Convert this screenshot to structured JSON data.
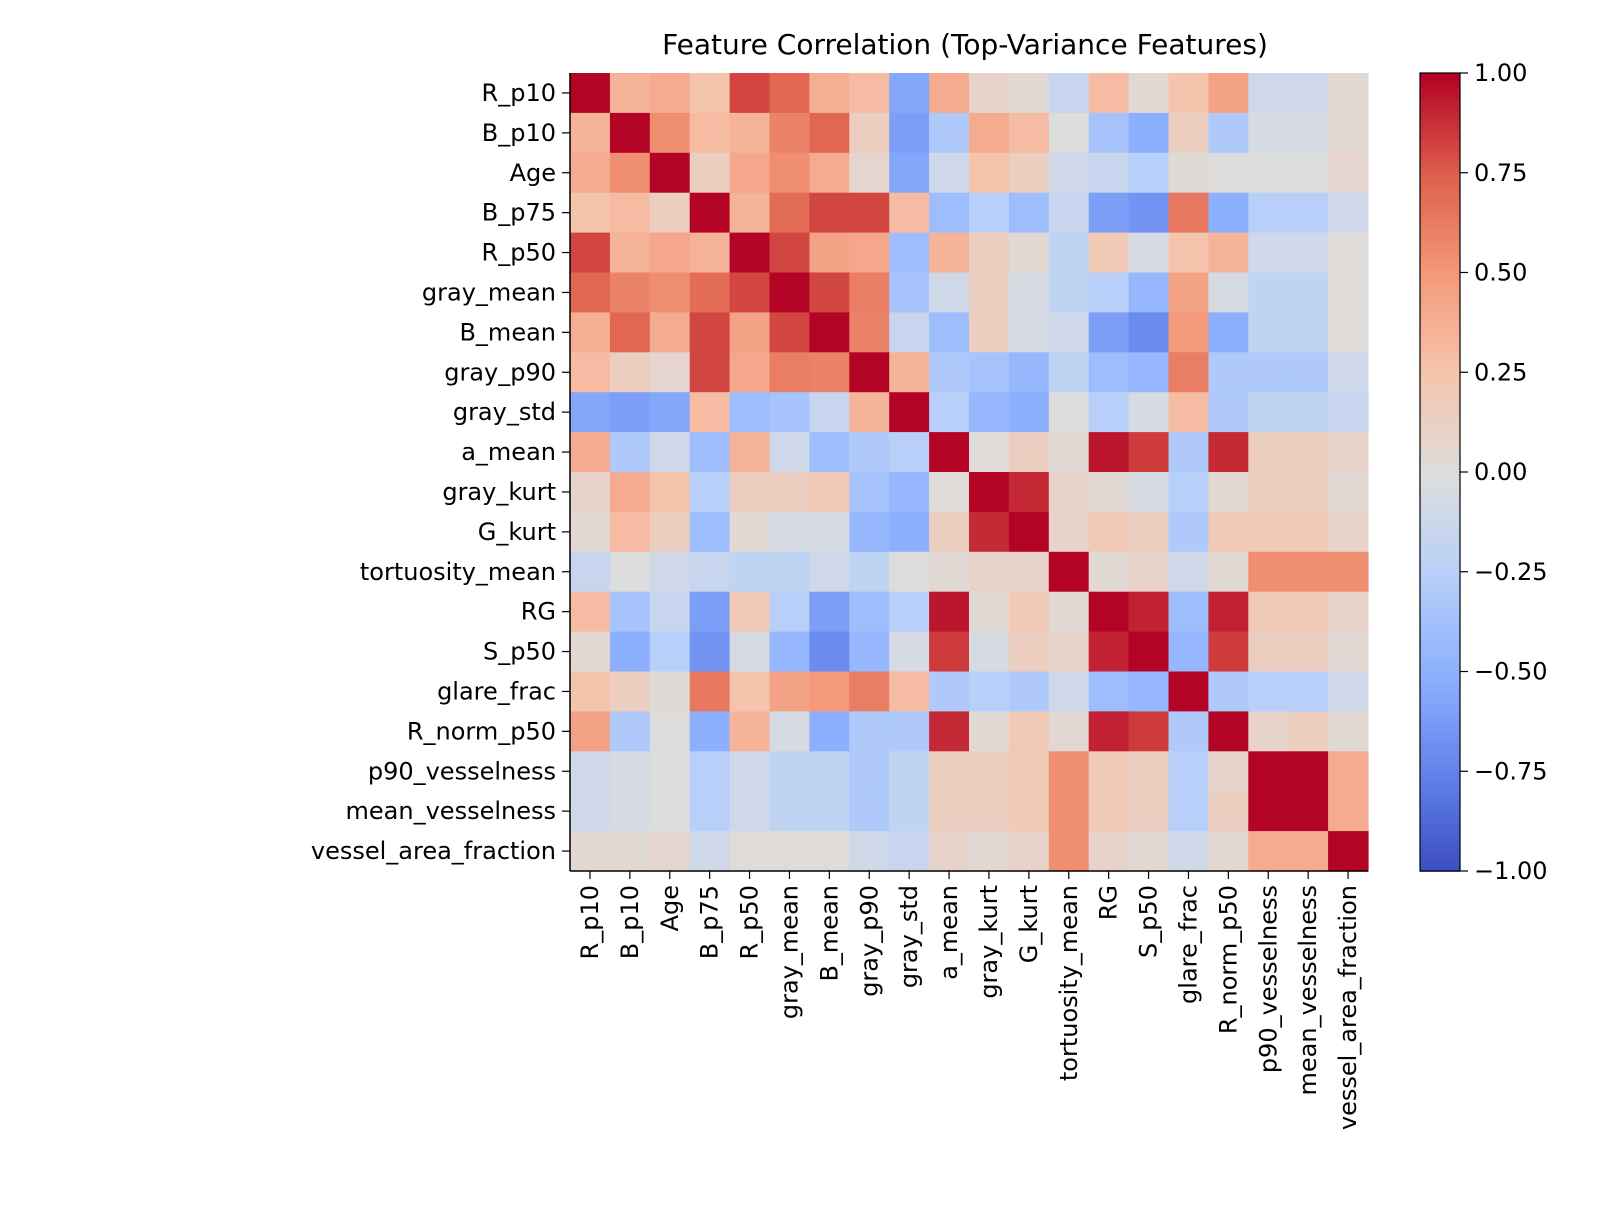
{
  "chart_data": {
    "type": "heatmap",
    "title": "Feature Correlation (Top-Variance Features)",
    "xlabel": "",
    "ylabel": "",
    "labels": [
      "R_p10",
      "B_p10",
      "Age",
      "B_p75",
      "R_p50",
      "gray_mean",
      "B_mean",
      "gray_p90",
      "gray_std",
      "a_mean",
      "gray_kurt",
      "G_kurt",
      "tortuosity_mean",
      "RG",
      "S_p50",
      "glare_frac",
      "R_norm_p50",
      "p90_vesselness",
      "mean_vesselness",
      "vessel_area_fraction"
    ],
    "matrix": [
      [
        1.0,
        0.35,
        0.4,
        0.25,
        0.82,
        0.72,
        0.38,
        0.3,
        -0.55,
        0.4,
        0.1,
        0.05,
        -0.15,
        0.3,
        0.05,
        0.25,
        0.45,
        -0.1,
        -0.1,
        0.05
      ],
      [
        0.35,
        1.0,
        0.55,
        0.3,
        0.35,
        0.6,
        0.72,
        0.15,
        -0.6,
        -0.3,
        0.4,
        0.3,
        0.0,
        -0.35,
        -0.5,
        0.15,
        -0.3,
        -0.05,
        -0.05,
        0.05
      ],
      [
        0.4,
        0.55,
        1.0,
        0.15,
        0.42,
        0.55,
        0.4,
        0.08,
        -0.55,
        -0.1,
        0.25,
        0.15,
        -0.1,
        -0.15,
        -0.25,
        0.03,
        0.0,
        0.0,
        0.0,
        0.08
      ],
      [
        0.25,
        0.3,
        0.15,
        1.0,
        0.35,
        0.7,
        0.82,
        0.82,
        0.3,
        -0.4,
        -0.25,
        -0.4,
        -0.15,
        -0.6,
        -0.65,
        0.65,
        -0.5,
        -0.25,
        -0.25,
        -0.1
      ],
      [
        0.82,
        0.35,
        0.42,
        0.35,
        1.0,
        0.82,
        0.45,
        0.42,
        -0.4,
        0.35,
        0.15,
        0.05,
        -0.2,
        0.2,
        -0.05,
        0.25,
        0.35,
        -0.1,
        -0.1,
        0.02
      ],
      [
        0.72,
        0.6,
        0.55,
        0.7,
        0.82,
        1.0,
        0.82,
        0.62,
        -0.35,
        -0.1,
        0.15,
        -0.05,
        -0.2,
        -0.25,
        -0.45,
        0.45,
        -0.05,
        -0.2,
        -0.2,
        0.02
      ],
      [
        0.38,
        0.72,
        0.4,
        0.82,
        0.45,
        0.82,
        1.0,
        0.6,
        -0.15,
        -0.4,
        0.15,
        -0.05,
        -0.1,
        -0.6,
        -0.7,
        0.5,
        -0.5,
        -0.2,
        -0.2,
        0.02
      ],
      [
        0.3,
        0.15,
        0.08,
        0.82,
        0.42,
        0.62,
        0.6,
        1.0,
        0.35,
        -0.3,
        -0.35,
        -0.45,
        -0.2,
        -0.4,
        -0.45,
        0.62,
        -0.3,
        -0.3,
        -0.3,
        -0.1
      ],
      [
        -0.55,
        -0.6,
        -0.55,
        0.3,
        -0.4,
        -0.35,
        -0.15,
        0.35,
        1.0,
        -0.25,
        -0.45,
        -0.5,
        0.0,
        -0.25,
        -0.05,
        0.3,
        -0.3,
        -0.2,
        -0.2,
        -0.15
      ],
      [
        0.4,
        -0.3,
        -0.1,
        -0.4,
        0.35,
        -0.1,
        -0.4,
        -0.3,
        -0.25,
        1.0,
        0.02,
        0.15,
        0.05,
        0.95,
        0.85,
        -0.3,
        0.9,
        0.15,
        0.15,
        0.1
      ],
      [
        0.1,
        0.4,
        0.25,
        -0.25,
        0.15,
        0.15,
        0.2,
        -0.35,
        -0.45,
        0.02,
        1.0,
        0.9,
        0.1,
        0.05,
        -0.05,
        -0.25,
        0.05,
        0.15,
        0.15,
        0.05
      ],
      [
        0.05,
        0.3,
        0.15,
        -0.4,
        0.05,
        -0.05,
        -0.05,
        -0.45,
        -0.5,
        0.15,
        0.9,
        1.0,
        0.1,
        0.2,
        0.15,
        -0.3,
        0.2,
        0.2,
        0.2,
        0.1
      ],
      [
        -0.15,
        0.0,
        -0.1,
        -0.15,
        -0.2,
        -0.2,
        -0.1,
        -0.2,
        0.0,
        0.05,
        0.1,
        0.1,
        1.0,
        0.05,
        0.1,
        -0.1,
        0.05,
        0.55,
        0.55,
        0.55
      ],
      [
        0.3,
        -0.35,
        -0.15,
        -0.6,
        0.2,
        -0.25,
        -0.6,
        -0.4,
        -0.25,
        0.95,
        0.05,
        0.2,
        0.05,
        1.0,
        0.92,
        -0.4,
        0.92,
        0.2,
        0.2,
        0.1
      ],
      [
        0.05,
        -0.5,
        -0.25,
        -0.65,
        -0.05,
        -0.45,
        -0.7,
        -0.45,
        -0.05,
        0.85,
        -0.05,
        0.15,
        0.1,
        0.92,
        1.0,
        -0.45,
        0.85,
        0.15,
        0.15,
        0.05
      ],
      [
        0.25,
        0.15,
        0.03,
        0.65,
        0.25,
        0.45,
        0.5,
        0.62,
        0.3,
        -0.3,
        -0.25,
        -0.3,
        -0.1,
        -0.4,
        -0.45,
        1.0,
        -0.3,
        -0.25,
        -0.25,
        -0.1
      ],
      [
        0.45,
        -0.3,
        0.0,
        -0.5,
        0.35,
        -0.05,
        -0.5,
        -0.3,
        -0.3,
        0.9,
        0.05,
        0.2,
        0.05,
        0.92,
        0.85,
        -0.3,
        1.0,
        0.1,
        0.15,
        0.05
      ],
      [
        -0.1,
        -0.05,
        0.0,
        -0.25,
        -0.1,
        -0.2,
        -0.2,
        -0.3,
        -0.2,
        0.15,
        0.15,
        0.2,
        0.55,
        0.2,
        0.15,
        -0.25,
        0.1,
        1.0,
        1.0,
        0.4
      ],
      [
        -0.1,
        -0.05,
        0.0,
        -0.25,
        -0.1,
        -0.2,
        -0.2,
        -0.3,
        -0.2,
        0.15,
        0.15,
        0.2,
        0.55,
        0.2,
        0.15,
        -0.25,
        0.15,
        1.0,
        1.0,
        0.4
      ],
      [
        0.05,
        0.05,
        0.08,
        -0.1,
        0.02,
        0.02,
        0.02,
        -0.1,
        -0.15,
        0.1,
        0.05,
        0.1,
        0.55,
        0.1,
        0.05,
        -0.1,
        0.05,
        0.4,
        0.4,
        1.0
      ]
    ],
    "colorscale": "coolwarm",
    "vmin": -1.0,
    "vmax": 1.0,
    "colorbar_ticks": [
      "1.00",
      "0.75",
      "0.50",
      "0.25",
      "0.00",
      "−0.25",
      "−0.50",
      "−0.75",
      "−1.00"
    ],
    "grid": false,
    "legend": "colorbar right"
  }
}
